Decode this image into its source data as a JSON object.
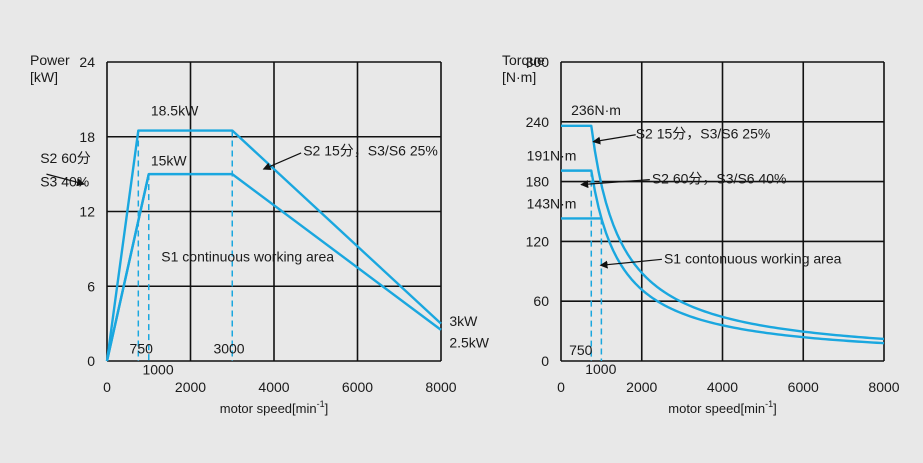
{
  "colors": {
    "background": "#e8e8e8",
    "grid": "#111111",
    "curve": "#1aa7df",
    "text": "#1a1a1a"
  },
  "chart_data": [
    {
      "type": "line",
      "name": "power",
      "ylabel_lines": [
        "Power",
        "[kW]"
      ],
      "xlabel_main": "motor speed[min",
      "xlabel_sup": "-1",
      "xlabel_end": "]",
      "xlim": [
        0,
        8000
      ],
      "ylim": [
        0,
        24
      ],
      "xticks": [
        0,
        2000,
        4000,
        6000,
        8000
      ],
      "yticks": [
        0,
        6,
        12,
        18,
        24
      ],
      "grid": true,
      "series": [
        {
          "name": "S2 15分，S3/S6 25%",
          "x": [
            0,
            750,
            3000,
            8000
          ],
          "y": [
            0,
            18.5,
            18.5,
            3
          ]
        },
        {
          "name": "S2 60分, S3 40%",
          "x": [
            0,
            1000,
            3000,
            8000
          ],
          "y": [
            0,
            15,
            15,
            2.5
          ]
        },
        {
          "x": [
            0,
            1000
          ],
          "y": [
            0,
            15
          ]
        }
      ],
      "guides": [
        {
          "x": 750,
          "y": 18.5
        },
        {
          "x": 1000,
          "y": 15
        },
        {
          "x": 3000,
          "y": 18.5
        }
      ],
      "annotations": [
        {
          "text": "18.5kW",
          "x": 1050,
          "y": 19.7
        },
        {
          "text": "15kW",
          "x": 1050,
          "y": 15.7
        },
        {
          "text": "S2 60分",
          "x": -1600,
          "y": 15.9
        },
        {
          "text": "S3 40%",
          "x": -1600,
          "y": 14.0
        },
        {
          "text": "S2 15分，S3/S6 25%",
          "x": 4700,
          "y": 16.5
        },
        {
          "text": "S1 continuous working area",
          "x": 1300,
          "y": 8.0
        },
        {
          "text": "750",
          "x": 540,
          "y": 0.6
        },
        {
          "text": "1000",
          "x": 850,
          "y": -1.1
        },
        {
          "text": "3000",
          "x": 2550,
          "y": 0.6
        },
        {
          "text": "3kW",
          "x": 8200,
          "y": 2.8
        },
        {
          "text": "2.5kW",
          "x": 8200,
          "y": 1.1
        }
      ],
      "arrows": [
        {
          "from": [
            -1450,
            15.0
          ],
          "to": [
            -550,
            14.2
          ]
        },
        {
          "from": [
            4650,
            16.7
          ],
          "to": [
            3750,
            15.4
          ]
        }
      ]
    },
    {
      "type": "line",
      "name": "torque",
      "ylabel_lines": [
        "Torque",
        "[N·m]"
      ],
      "xlabel_main": "motor speed[min",
      "xlabel_sup": "-1",
      "xlabel_end": "]",
      "xlim": [
        0,
        8000
      ],
      "ylim": [
        0,
        300
      ],
      "xticks": [
        0,
        2000,
        4000,
        6000,
        8000
      ],
      "yticks": [
        0,
        60,
        120,
        180,
        240,
        300
      ],
      "grid": true,
      "series": [
        {
          "name": "S2 15分，S3/S6 25%",
          "x": [
            0,
            750
          ],
          "y": [
            236,
            236
          ],
          "hyperbola": {
            "k": 177000,
            "from": 750,
            "to": 8000
          }
        },
        {
          "name": "S2 60分，S3/S6 40%",
          "x": [
            0,
            750
          ],
          "y": [
            191,
            191
          ],
          "hyperbola": {
            "k": 143250,
            "from": 750,
            "to": 8000
          }
        },
        {
          "name": "S1",
          "x": [
            0,
            1000
          ],
          "y": [
            143,
            143
          ]
        }
      ],
      "guides": [
        {
          "x": 750,
          "y": 191
        },
        {
          "x": 1000,
          "y": 143
        }
      ],
      "annotations": [
        {
          "text": "236N·m",
          "x": 250,
          "y": 247
        },
        {
          "text": "191N·m",
          "x": -850,
          "y": 201
        },
        {
          "text": "143N·m",
          "x": -850,
          "y": 153
        },
        {
          "text": "S2 15分，S3/S6 25%",
          "x": 1850,
          "y": 223
        },
        {
          "text": "S2 60分，S3/S6 40%",
          "x": 2250,
          "y": 178
        },
        {
          "text": "S1 contonuous working area",
          "x": 2550,
          "y": 98
        },
        {
          "text": "750",
          "x": 200,
          "y": 6
        },
        {
          "text": "1000",
          "x": 600,
          "y": -13
        }
      ],
      "arrows": [
        {
          "from": [
            1850,
            227
          ],
          "to": [
            800,
            220
          ]
        },
        {
          "from": [
            2200,
            182
          ],
          "to": [
            500,
            177
          ]
        },
        {
          "from": [
            2500,
            102
          ],
          "to": [
            980,
            96
          ]
        }
      ]
    }
  ]
}
